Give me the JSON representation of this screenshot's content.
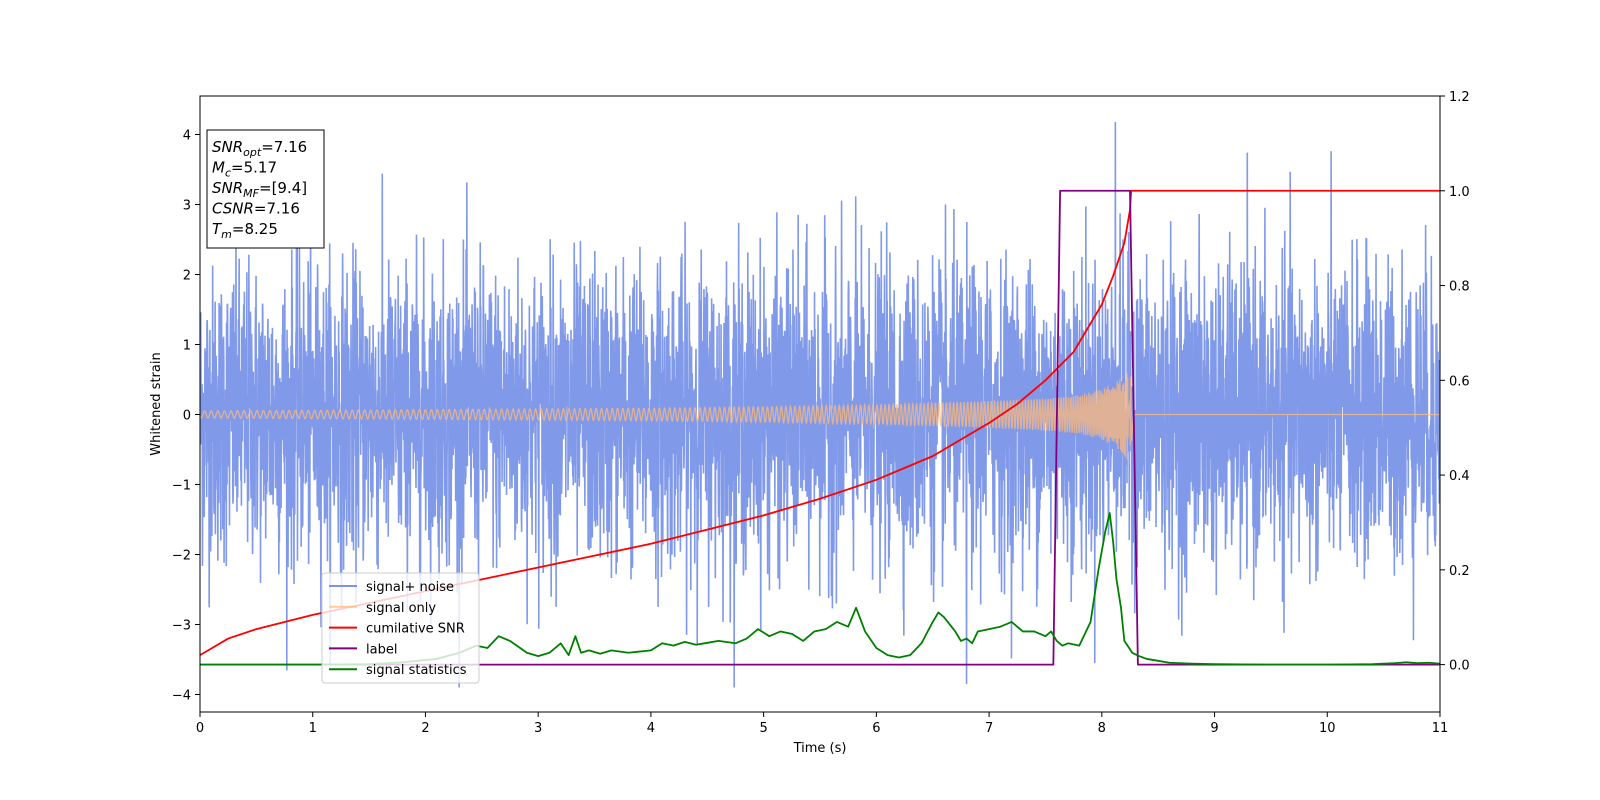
{
  "chart_data": {
    "type": "line",
    "xlabel": "Time (s)",
    "ylabel": "Whitened strain",
    "xlim": [
      0,
      11
    ],
    "ylim": [
      -4.25,
      4.55
    ],
    "y2lim": [
      -0.1,
      1.2
    ],
    "x_ticks": [
      0,
      1,
      2,
      3,
      4,
      5,
      6,
      7,
      8,
      9,
      10,
      11
    ],
    "x_tick_labels": [
      "0",
      "1",
      "2",
      "3",
      "4",
      "5",
      "6",
      "7",
      "8",
      "9",
      "10",
      "11"
    ],
    "y_ticks": [
      -4,
      -3,
      -2,
      -1,
      0,
      1,
      2,
      3,
      4
    ],
    "y_tick_labels": [
      "−4",
      "−3",
      "−2",
      "−1",
      "0",
      "1",
      "2",
      "3",
      "4"
    ],
    "y2_ticks": [
      0.0,
      0.2,
      0.4,
      0.6,
      0.8,
      1.0,
      1.2
    ],
    "y2_tick_labels": [
      "0.0",
      "0.2",
      "0.4",
      "0.6",
      "0.8",
      "1.0",
      "1.2"
    ],
    "info_box": [
      {
        "main": "SNR",
        "sub": "opt",
        "italic": true,
        "rest": "=7.16"
      },
      {
        "main": "M",
        "sub": "c",
        "italic": true,
        "rest": "=5.17"
      },
      {
        "main": "SNR",
        "sub": "MF",
        "italic": true,
        "rest": "=[9.4]"
      },
      {
        "main": "CSNR",
        "sub": "",
        "italic": true,
        "rest": "=7.16"
      },
      {
        "main": "T",
        "sub": "m",
        "italic": true,
        "rest": "=8.25"
      }
    ],
    "legend_position": "lower-left",
    "series": [
      {
        "name": "signal+ noise",
        "axis": "left",
        "color": "#7994e8",
        "note_kind": "noise",
        "amplitude_std": 1.0,
        "visible_extremes": {
          "max": 4.18,
          "max_at": 8.12,
          "min": -3.85,
          "min_at": 6.8
        }
      },
      {
        "name": "signal only",
        "axis": "left",
        "color": "#ffb97a",
        "note_kind": "chirp",
        "envelope": {
          "x": [
            0,
            1,
            2,
            3,
            4,
            5,
            6,
            7,
            7.5,
            7.8,
            8.0,
            8.15,
            8.25,
            8.28,
            11
          ],
          "y": [
            0.05,
            0.06,
            0.07,
            0.08,
            0.09,
            0.11,
            0.14,
            0.19,
            0.23,
            0.28,
            0.36,
            0.5,
            0.7,
            0.0,
            0.0
          ]
        }
      },
      {
        "name": "cumilative SNR",
        "axis": "right",
        "color": "#ff0000",
        "x": [
          0,
          0.25,
          0.5,
          1,
          1.5,
          2,
          2.5,
          3,
          3.5,
          4,
          4.5,
          5,
          5.5,
          6,
          6.5,
          7,
          7.25,
          7.5,
          7.75,
          8.0,
          8.1,
          8.2,
          8.25,
          8.26,
          11
        ],
        "y": [
          0.02,
          0.055,
          0.075,
          0.105,
          0.13,
          0.155,
          0.18,
          0.205,
          0.23,
          0.255,
          0.285,
          0.315,
          0.35,
          0.39,
          0.44,
          0.51,
          0.55,
          0.6,
          0.66,
          0.76,
          0.82,
          0.89,
          0.96,
          1.0,
          1.0
        ]
      },
      {
        "name": "label",
        "axis": "right",
        "color": "#800080",
        "x": [
          0,
          7.57,
          7.63,
          8.25,
          8.32,
          11
        ],
        "y": [
          0,
          0,
          1,
          1,
          0,
          0
        ]
      },
      {
        "name": "signal statistics",
        "axis": "right",
        "color": "#008000",
        "x": [
          0,
          0.5,
          1,
          1.5,
          1.8,
          2.1,
          2.3,
          2.45,
          2.55,
          2.65,
          2.75,
          2.9,
          3.0,
          3.1,
          3.2,
          3.27,
          3.33,
          3.38,
          3.45,
          3.55,
          3.65,
          3.8,
          4.0,
          4.1,
          4.2,
          4.3,
          4.4,
          4.5,
          4.6,
          4.75,
          4.85,
          4.95,
          5.05,
          5.15,
          5.25,
          5.35,
          5.45,
          5.55,
          5.65,
          5.75,
          5.82,
          5.9,
          6.0,
          6.1,
          6.2,
          6.3,
          6.4,
          6.5,
          6.55,
          6.6,
          6.7,
          6.75,
          6.8,
          6.85,
          6.9,
          7.0,
          7.1,
          7.2,
          7.3,
          7.4,
          7.5,
          7.55,
          7.6,
          7.65,
          7.7,
          7.8,
          7.9,
          7.97,
          8.03,
          8.07,
          8.1,
          8.13,
          8.17,
          8.2,
          8.27,
          8.33,
          8.4,
          8.5,
          8.6,
          8.8,
          9.0,
          9.5,
          10.0,
          10.4,
          10.6,
          10.7,
          10.8,
          10.9,
          11.0
        ],
        "y": [
          0.0,
          0.0,
          0.0,
          0.001,
          0.005,
          0.012,
          0.025,
          0.04,
          0.035,
          0.06,
          0.05,
          0.025,
          0.018,
          0.025,
          0.045,
          0.02,
          0.06,
          0.025,
          0.03,
          0.023,
          0.03,
          0.025,
          0.03,
          0.045,
          0.04,
          0.048,
          0.042,
          0.046,
          0.05,
          0.045,
          0.055,
          0.075,
          0.06,
          0.07,
          0.065,
          0.05,
          0.07,
          0.075,
          0.09,
          0.08,
          0.12,
          0.07,
          0.035,
          0.02,
          0.015,
          0.02,
          0.045,
          0.09,
          0.11,
          0.1,
          0.07,
          0.05,
          0.055,
          0.045,
          0.07,
          0.075,
          0.08,
          0.09,
          0.07,
          0.07,
          0.06,
          0.07,
          0.05,
          0.04,
          0.045,
          0.04,
          0.09,
          0.2,
          0.28,
          0.32,
          0.26,
          0.18,
          0.12,
          0.05,
          0.025,
          0.018,
          0.012,
          0.008,
          0.004,
          0.002,
          0.001,
          0.0,
          0.0,
          0.001,
          0.003,
          0.005,
          0.003,
          0.004,
          0.002
        ]
      }
    ]
  }
}
